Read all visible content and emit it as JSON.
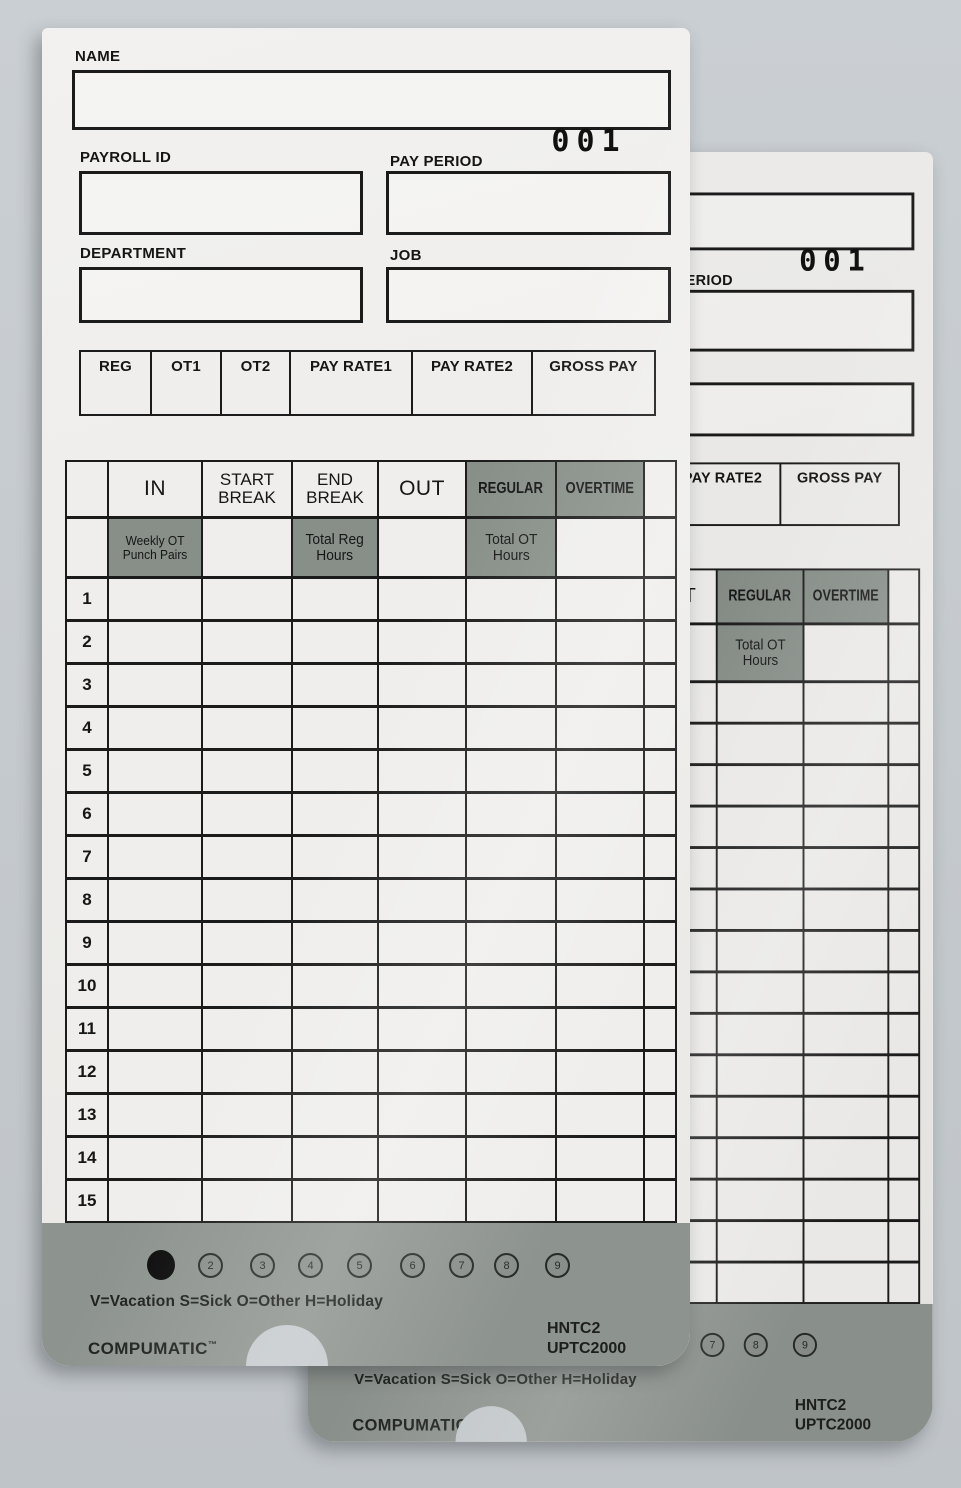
{
  "page": {
    "background": "#c5cacd"
  },
  "card": {
    "fields": {
      "name_label": "NAME",
      "payroll_id_label": "PAYROLL ID",
      "pay_period_label": "PAY PERIOD",
      "card_number": "001",
      "department_label": "DEPARTMENT",
      "job_label": "JOB"
    },
    "summary": {
      "columns": [
        "REG",
        "OT1",
        "OT2",
        "PAY RATE1",
        "PAY RATE2",
        "GROSS PAY"
      ]
    },
    "table": {
      "columns": [
        "IN",
        "START\nBREAK",
        "END\nBREAK",
        "OUT",
        "REGULAR",
        "OVERTIME"
      ],
      "subheaders": {
        "weekly_ot": "Weekly OT\nPunch Pairs",
        "total_reg": "Total Reg\nHours",
        "total_ot": "Total OT\nHours"
      },
      "row_numbers": [
        "1",
        "2",
        "3",
        "4",
        "5",
        "6",
        "7",
        "8",
        "9",
        "10",
        "11",
        "12",
        "13",
        "14",
        "15"
      ]
    },
    "footer": {
      "punch_positions": [
        "1",
        "2",
        "3",
        "4",
        "5",
        "6",
        "7",
        "8",
        "9"
      ],
      "punched_position": "1",
      "legend": "V=Vacation S=Sick O=Other H=Holiday",
      "brand": "COMPUMATIC",
      "brand_tm": "™",
      "model_line1": "HNTC2",
      "model_line2": "UPTC2000"
    },
    "colors": {
      "paper": "#efeeec",
      "line": "#1b1b1b",
      "shaded_cell": "#878f88",
      "footer_band": "#8d938e"
    }
  }
}
